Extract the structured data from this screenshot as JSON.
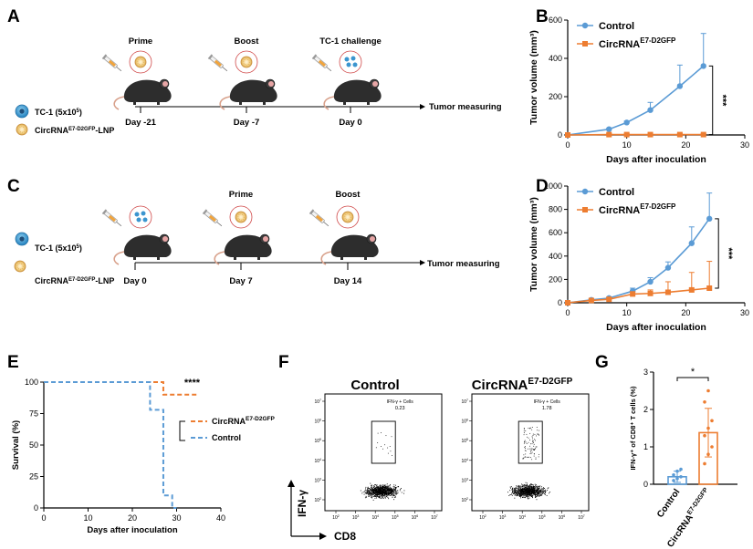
{
  "colors": {
    "control": "#5B9BD5",
    "circ": "#ED7D31",
    "axis": "#000000"
  },
  "panels": {
    "A": {
      "letter": "A",
      "labels": [
        "Prime",
        "Boost",
        "TC-1 challenge"
      ],
      "days": [
        "Day -21",
        "Day -7",
        "Day 0"
      ],
      "timeline_end": "Tumor measuring",
      "legend": {
        "cell": "TC-1 (5x10",
        "cell_sup": "5",
        "cell_close": ")",
        "lnp_base": "CircRNA",
        "lnp_sup": "E7-D2GFP",
        "lnp_suffix": "-LNP"
      }
    },
    "C": {
      "letter": "C",
      "labels": [
        "Prime",
        "Boost"
      ],
      "days": [
        "Day 0",
        "Day 7",
        "Day 14"
      ],
      "timeline_end": "Tumor measuring",
      "legend": {
        "cell": "TC-1 (5x10",
        "cell_sup": "5",
        "cell_close": ")",
        "lnp_base": "CircRNA",
        "lnp_sup": "E7-D2GFP",
        "lnp_suffix": "-LNP"
      }
    },
    "F": {
      "letter": "F",
      "control_title": "Control",
      "circ_title_base": "CircRNA",
      "circ_title_sup": "E7-D2GFP",
      "gate_label": "IFN-γ + Cells",
      "control_value": "0.23",
      "circ_value": "1.78",
      "y_axis": "IFN-γ",
      "x_axis": "CD8",
      "tick_labels": [
        "10",
        "10",
        "10",
        "10",
        "10",
        "10"
      ],
      "tick_sups": [
        "2",
        "3",
        "4",
        "5",
        "6",
        "7"
      ]
    }
  },
  "chart_data": [
    {
      "panel": "B",
      "type": "line",
      "xlabel": "Days after inoculation",
      "ylabel": "Tumor volume (mm³)",
      "ylim": [
        0,
        600
      ],
      "xlim": [
        0,
        30
      ],
      "xticks": [
        0,
        10,
        20,
        30
      ],
      "yticks": [
        0,
        200,
        400,
        600
      ],
      "significance": "***",
      "series": [
        {
          "name": "Control",
          "x": [
            0,
            7,
            10,
            14,
            19,
            23
          ],
          "values": [
            0,
            30,
            65,
            130,
            255,
            360
          ],
          "errors": [
            0,
            5,
            8,
            40,
            110,
            170
          ]
        },
        {
          "name": "CircRNA",
          "name_sup": "E7-D2GFP",
          "x": [
            0,
            7,
            10,
            14,
            19,
            23
          ],
          "values": [
            0,
            2,
            2,
            2,
            2,
            2
          ],
          "errors": [
            0,
            5,
            5,
            5,
            5,
            5
          ]
        }
      ]
    },
    {
      "panel": "D",
      "type": "line",
      "xlabel": "Days after inoculation",
      "ylabel": "Tumor volume (mm³)",
      "ylim": [
        0,
        1000
      ],
      "xlim": [
        0,
        30
      ],
      "xticks": [
        0,
        10,
        20,
        30
      ],
      "yticks": [
        0,
        200,
        400,
        600,
        800,
        1000
      ],
      "significance": "***",
      "series": [
        {
          "name": "Control",
          "x": [
            0,
            4,
            7,
            11,
            14,
            17,
            21,
            24
          ],
          "values": [
            0,
            25,
            40,
            100,
            180,
            300,
            510,
            720
          ],
          "errors": [
            0,
            10,
            10,
            25,
            35,
            50,
            140,
            220
          ]
        },
        {
          "name": "CircRNA",
          "name_sup": "E7-D2GFP",
          "x": [
            0,
            4,
            7,
            11,
            14,
            17,
            21,
            24
          ],
          "values": [
            0,
            20,
            30,
            75,
            80,
            90,
            110,
            125
          ],
          "errors": [
            0,
            8,
            10,
            20,
            30,
            90,
            150,
            230
          ]
        }
      ]
    },
    {
      "panel": "E",
      "type": "line",
      "xlabel": "Days after inoculation",
      "ylabel": "Survival (%)",
      "ylim": [
        0,
        100
      ],
      "xlim": [
        0,
        40
      ],
      "xticks": [
        0,
        10,
        20,
        30,
        40
      ],
      "yticks": [
        0,
        25,
        50,
        75,
        100
      ],
      "significance": "****",
      "series": [
        {
          "name": "CircRNA",
          "name_sup": "E7-D2GFP",
          "steps": [
            [
              0,
              100
            ],
            [
              27,
              100
            ],
            [
              27,
              90
            ],
            [
              35,
              90
            ]
          ]
        },
        {
          "name": "Control",
          "steps": [
            [
              0,
              100
            ],
            [
              24,
              100
            ],
            [
              24,
              78
            ],
            [
              27,
              78
            ],
            [
              27,
              10
            ],
            [
              29,
              10
            ],
            [
              29,
              0
            ],
            [
              30,
              0
            ]
          ]
        }
      ]
    },
    {
      "panel": "G",
      "type": "bar",
      "ylabel": "IFN-γ⁺ of CD8⁺ T cells (%)",
      "ylim": [
        0,
        3
      ],
      "yticks": [
        0,
        1,
        2,
        3
      ],
      "categories": [
        "Control",
        "CircRNA"
      ],
      "category_sups": [
        "",
        "E7-D2GFP"
      ],
      "values": [
        0.2,
        1.38
      ],
      "errors": [
        0.15,
        0.65
      ],
      "points": [
        [
          0.1,
          0.15,
          0.2,
          0.25,
          0.35,
          0.4
        ],
        [
          0.55,
          0.8,
          1.0,
          1.3,
          1.5,
          1.7,
          2.2,
          2.5
        ]
      ],
      "significance": "*"
    }
  ]
}
